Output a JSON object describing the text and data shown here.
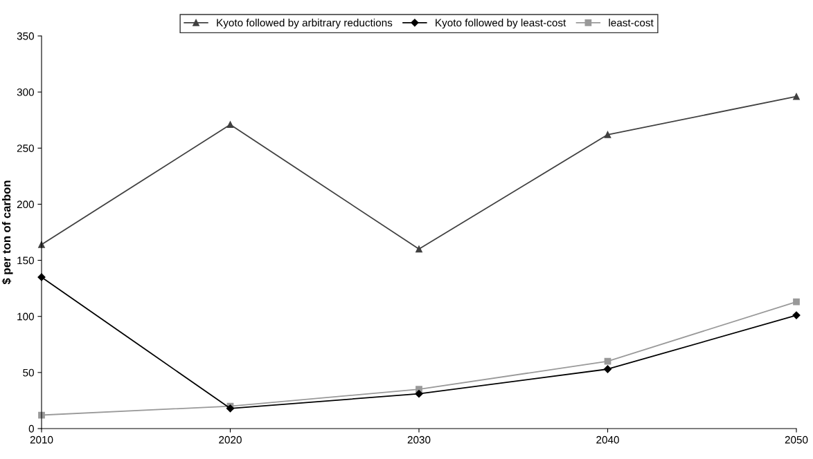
{
  "chart_data": {
    "type": "line",
    "ylabel": "$ per ton of carbon",
    "x": [
      2010,
      2020,
      2030,
      2040,
      2050
    ],
    "xlim": [
      2010,
      2050
    ],
    "xticks": [
      2010,
      2020,
      2030,
      2040,
      2050
    ],
    "ylim": [
      0,
      350
    ],
    "yticks": [
      0,
      50,
      100,
      150,
      200,
      250,
      300,
      350
    ],
    "grid": false,
    "legend": "top",
    "series": [
      {
        "name": "Kyoto followed by arbitrary reductions",
        "color": "#404040",
        "marker": "triangle",
        "values": [
          164,
          271,
          160,
          262,
          296
        ]
      },
      {
        "name": "Kyoto followed by least-cost",
        "color": "#000000",
        "marker": "diamond",
        "values": [
          135,
          18,
          31,
          53,
          101
        ]
      },
      {
        "name": "least-cost",
        "color": "#999999",
        "marker": "square",
        "values": [
          12,
          20,
          35,
          60,
          113
        ]
      }
    ]
  }
}
